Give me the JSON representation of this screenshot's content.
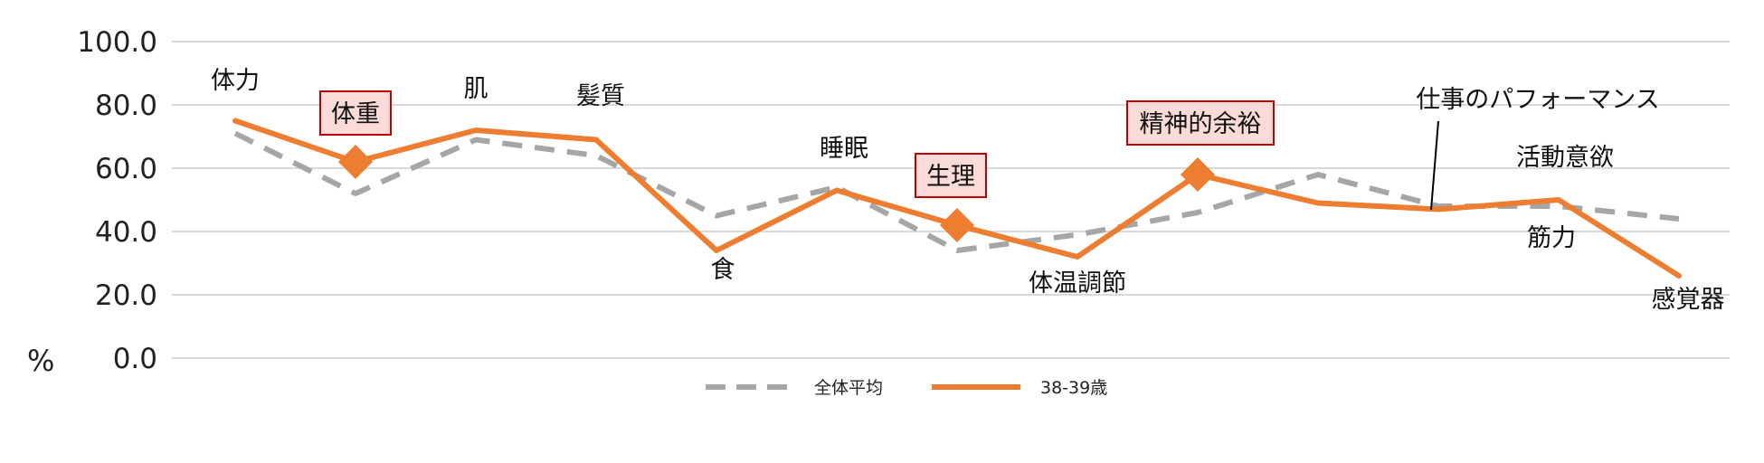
{
  "chart_data": {
    "type": "line",
    "y_unit_label": "%",
    "ylim": [
      0,
      100
    ],
    "yticks": [
      "0.0",
      "20.0",
      "40.0",
      "60.0",
      "80.0",
      "100.0"
    ],
    "grid": true,
    "legend_position": "bottom",
    "categories": [
      "体力",
      "体重",
      "肌",
      "髪質",
      "食",
      "睡眠",
      "生理",
      "体温調節",
      "精神的余裕",
      "仕事のパフォーマンス",
      "筋力",
      "活動意欲",
      "感覚器"
    ],
    "series": [
      {
        "name": "全体平均",
        "color": "#a6a6a6",
        "style": "dashed",
        "values": [
          71,
          52,
          69,
          64,
          45,
          54,
          34,
          39,
          46,
          58,
          48,
          48,
          44
        ]
      },
      {
        "name": "38-39歳",
        "color": "#ed7d31",
        "style": "solid",
        "values": [
          75,
          62,
          72,
          69,
          34,
          53,
          42,
          32,
          58,
          49,
          47,
          50,
          26
        ]
      }
    ],
    "highlighted_categories": [
      "体重",
      "生理",
      "精神的余裕"
    ],
    "highlight_box_fill": "#fadbd8",
    "highlight_box_border": "#c00000",
    "marker_color": "#ed7d31"
  }
}
